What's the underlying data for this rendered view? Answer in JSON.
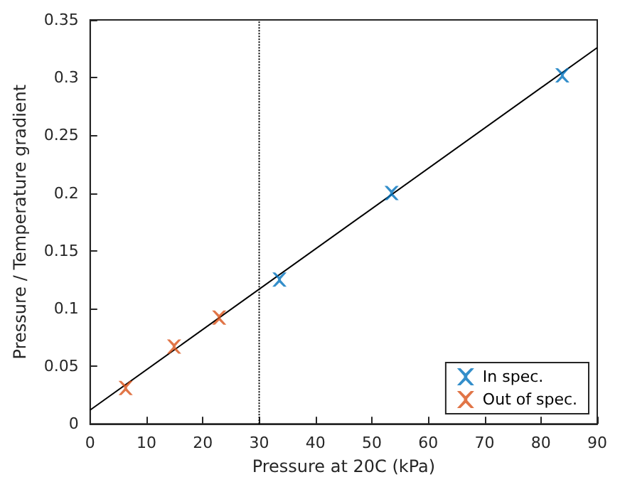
{
  "chart_data": {
    "type": "scatter",
    "xlabel": "Pressure at 20C (kPa)",
    "ylabel": "Pressure / Temperature gradient",
    "xlim": [
      0,
      90
    ],
    "xticks": [
      0,
      10,
      20,
      30,
      40,
      50,
      60,
      70,
      80,
      90
    ],
    "ylim": [
      0,
      0.35
    ],
    "yticks": [
      0,
      0.05,
      0.1,
      0.15,
      0.2,
      0.25,
      0.3,
      0.35
    ],
    "marker": "cross",
    "grid": false,
    "legend": "bottom right",
    "series": [
      {
        "name": "In spec.",
        "color": "#0072bd",
        "x": [
          33.6,
          53.5,
          83.8
        ],
        "values": [
          0.125,
          0.2,
          0.302
        ]
      },
      {
        "name": "Out of spec.",
        "color": "#d95319",
        "x": [
          6.3,
          14.9,
          22.9
        ],
        "values": [
          0.031,
          0.067,
          0.092
        ]
      },
      {
        "type": "line",
        "color": "#000000",
        "x": [
          0,
          90
        ],
        "values": [
          0.012,
          0.326
        ],
        "marker": "none",
        "line_style": "solid"
      }
    ],
    "ref_lines": [
      {
        "axis": "x",
        "value": 30,
        "color": "#000000",
        "line_style": "dotted"
      }
    ]
  }
}
